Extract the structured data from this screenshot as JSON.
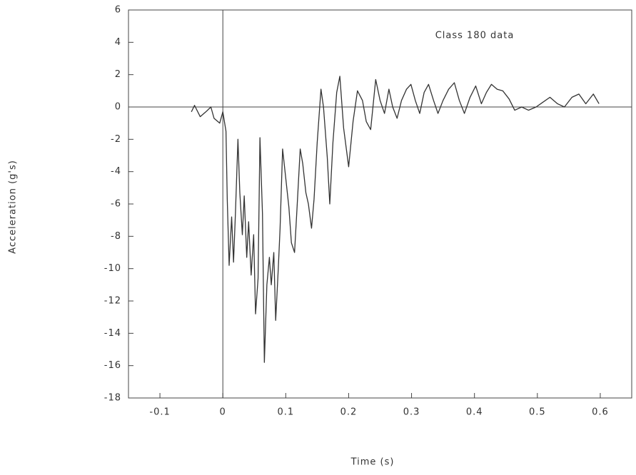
{
  "chart_data": {
    "type": "line",
    "xlabel": "Time (s)",
    "ylabel": "Acceleration (g's)",
    "annotation": "Class 180 data",
    "color": "#333333",
    "zero_lines": true,
    "xlim": [
      -0.15,
      0.65
    ],
    "xticks": [
      -0.1,
      0,
      0.1,
      0.2,
      0.3,
      0.4,
      0.5,
      0.6
    ],
    "ylim": [
      -18,
      6
    ],
    "yticks": [
      -18,
      -16,
      -14,
      -12,
      -10,
      -8,
      -6,
      -4,
      -2,
      0,
      2,
      4,
      6
    ],
    "x": [
      -0.05,
      -0.045,
      -0.036,
      -0.027,
      -0.019,
      -0.014,
      -0.005,
      0,
      0.005,
      0.007,
      0.01,
      0.014,
      0.017,
      0.02,
      0.024,
      0.027,
      0.031,
      0.034,
      0.038,
      0.041,
      0.045,
      0.049,
      0.052,
      0.056,
      0.059,
      0.063,
      0.066,
      0.07,
      0.074,
      0.077,
      0.081,
      0.084,
      0.088,
      0.091,
      0.095,
      0.1,
      0.105,
      0.109,
      0.114,
      0.118,
      0.123,
      0.127,
      0.132,
      0.136,
      0.141,
      0.145,
      0.15,
      0.156,
      0.16,
      0.166,
      0.17,
      0.175,
      0.181,
      0.186,
      0.192,
      0.2,
      0.207,
      0.214,
      0.222,
      0.228,
      0.235,
      0.243,
      0.25,
      0.257,
      0.264,
      0.27,
      0.277,
      0.284,
      0.292,
      0.299,
      0.306,
      0.313,
      0.32,
      0.327,
      0.335,
      0.342,
      0.35,
      0.359,
      0.368,
      0.376,
      0.384,
      0.393,
      0.402,
      0.411,
      0.419,
      0.427,
      0.436,
      0.445,
      0.455,
      0.464,
      0.475,
      0.486,
      0.498,
      0.509,
      0.52,
      0.532,
      0.543,
      0.555,
      0.566,
      0.577,
      0.589,
      0.598
    ],
    "values": [
      -0.3,
      0.1,
      -0.6,
      -0.3,
      0,
      -0.7,
      -1.0,
      -0.3,
      -1.5,
      -5.7,
      -9.8,
      -6.8,
      -9.6,
      -6.6,
      -2.0,
      -5.3,
      -7.9,
      -5.5,
      -9.3,
      -7.1,
      -10.4,
      -7.9,
      -12.8,
      -10.6,
      -1.9,
      -6.6,
      -15.8,
      -11.0,
      -9.3,
      -11.0,
      -9.0,
      -13.2,
      -10.1,
      -7.5,
      -2.6,
      -4.4,
      -6.2,
      -8.4,
      -9.0,
      -6.2,
      -2.6,
      -3.5,
      -5.3,
      -6.0,
      -7.5,
      -5.7,
      -2.2,
      1.1,
      0,
      -3.1,
      -6.0,
      -2.2,
      0.9,
      1.9,
      -1.3,
      -3.7,
      -0.9,
      1.0,
      0.4,
      -0.9,
      -1.4,
      1.7,
      0.4,
      -0.4,
      1.1,
      0,
      -0.7,
      0.4,
      1.1,
      1.4,
      0.4,
      -0.4,
      0.9,
      1.4,
      0.4,
      -0.4,
      0.4,
      1.1,
      1.5,
      0.4,
      -0.4,
      0.6,
      1.3,
      0.2,
      0.9,
      1.4,
      1.1,
      1.0,
      0.5,
      -0.2,
      0,
      -0.2,
      0,
      0.3,
      0.6,
      0.2,
      0,
      0.6,
      0.8,
      0.2,
      0.8,
      0.2
    ]
  }
}
